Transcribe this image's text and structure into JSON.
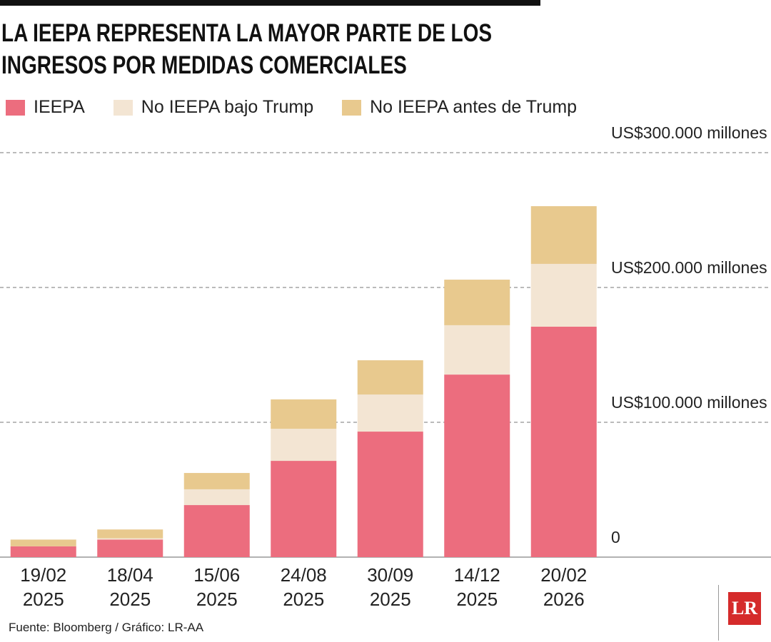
{
  "chart_data": {
    "type": "stacked_bar",
    "title": "LA IEEPA REPRESENTA LA MAYOR PARTE DE LOS INGRESOS POR MEDIDAS COMERCIALES",
    "categories": [
      "19/02 2025",
      "18/04 2025",
      "15/06 2025",
      "24/08 2025",
      "30/09 2025",
      "14/12 2025",
      "20/02 2026"
    ],
    "series": [
      {
        "name": "IEEPA",
        "color": "#ec6d7e",
        "values": [
          8000,
          13000,
          38600,
          71400,
          93100,
          135400,
          170900
        ]
      },
      {
        "name": "No IEEPA bajo Trump",
        "color": "#f3e5d3",
        "values": [
          0,
          1000,
          11700,
          23800,
          27500,
          36600,
          46600
        ]
      },
      {
        "name": "No IEEPA antes de Trump",
        "color": "#e8c98e",
        "values": [
          5000,
          6500,
          12100,
          21800,
          25400,
          33800,
          42800
        ]
      }
    ],
    "ylim": [
      0,
      300000
    ],
    "yticks": [
      0,
      {
        "value": 100000,
        "label": "US$100.000 millones"
      },
      {
        "value": 200000,
        "label": "US$200.000 millones"
      },
      {
        "value": 300000,
        "label": "US$300.000 millones"
      }
    ],
    "grid": true,
    "source": "Fuente: Bloomberg / Gráfico: LR-AA",
    "logo": "LR"
  }
}
